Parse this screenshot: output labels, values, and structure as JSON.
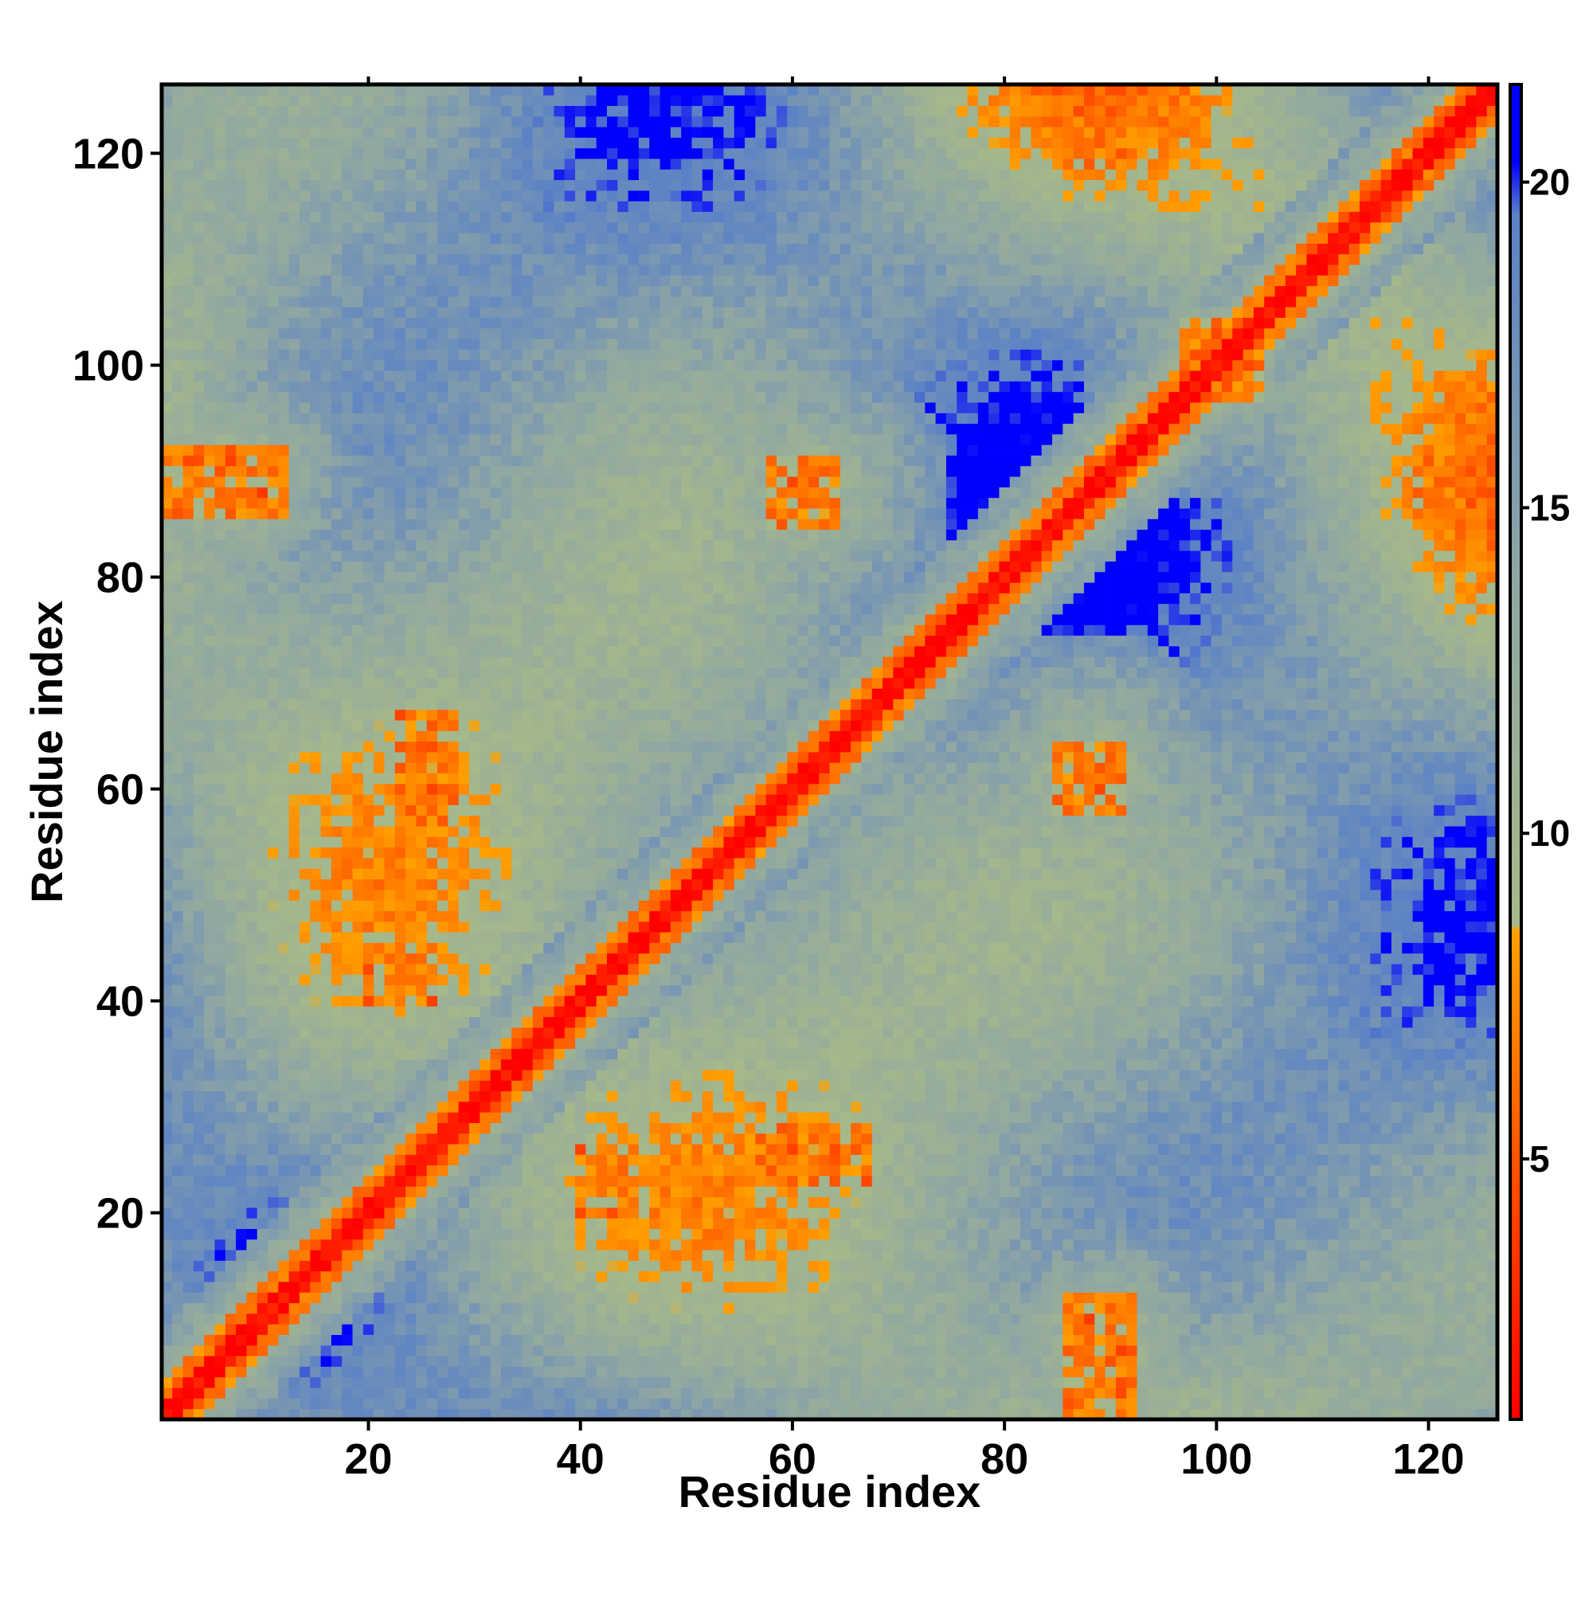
{
  "chart_data": {
    "type": "heatmap",
    "title": "",
    "xlabel": "Residue index",
    "ylabel": "Residue index",
    "xlim": [
      1,
      126
    ],
    "ylim": [
      1,
      126
    ],
    "n_residues": 126,
    "xticks": [
      20,
      40,
      60,
      80,
      100,
      120
    ],
    "yticks": [
      20,
      40,
      60,
      80,
      100,
      120
    ],
    "xtick_labels": [
      "20",
      "40",
      "60",
      "80",
      "100",
      "120"
    ],
    "ytick_labels": [
      "20",
      "40",
      "60",
      "80",
      "100",
      "120"
    ],
    "colorbar": {
      "range": [
        1,
        21.5
      ],
      "ticks": [
        5,
        10,
        15,
        20
      ],
      "tick_labels": [
        "5",
        "10",
        "15",
        "20"
      ],
      "stops": [
        {
          "value": 1,
          "color": "#ff0000"
        },
        {
          "value": 4.5,
          "color": "#ff4a00"
        },
        {
          "value": 8.5,
          "color": "#ffa000"
        },
        {
          "value": 8.6,
          "color": "#a6b98a"
        },
        {
          "value": 14,
          "color": "#8fa6a3"
        },
        {
          "value": 19.5,
          "color": "#5b82c6"
        },
        {
          "value": 20.3,
          "color": "#0000ff"
        },
        {
          "value": 21.5,
          "color": "#0000ff"
        }
      ]
    },
    "values_description_note": null,
    "contact_regions": [
      {
        "x": [
          1,
          126
        ],
        "y": [
          1,
          126
        ],
        "kind": "diagonal"
      },
      {
        "x": [
          23,
          28
        ],
        "y": [
          57,
          67
        ],
        "kind": "strand-pair"
      },
      {
        "x": [
          59,
          67
        ],
        "y": [
          23,
          29
        ],
        "kind": "strand-pair"
      },
      {
        "x": [
          58,
          64
        ],
        "y": [
          85,
          91
        ],
        "kind": "strand-pair"
      },
      {
        "x": [
          85,
          91
        ],
        "y": [
          58,
          64
        ],
        "kind": "strand-pair"
      },
      {
        "x": [
          97,
          106
        ],
        "y": [
          94,
          104
        ],
        "kind": "helix-contact"
      },
      {
        "x": [
          1,
          12
        ],
        "y": [
          86,
          92
        ],
        "kind": "long-range"
      },
      {
        "x": [
          118,
          126
        ],
        "y": [
          85,
          92
        ],
        "kind": "long-range"
      },
      {
        "x": [
          20,
          26
        ],
        "y": [
          40,
          45
        ],
        "kind": "long-range"
      },
      {
        "x": [
          85,
          91
        ],
        "y": [
          118,
          126
        ],
        "kind": "long-range"
      }
    ]
  }
}
